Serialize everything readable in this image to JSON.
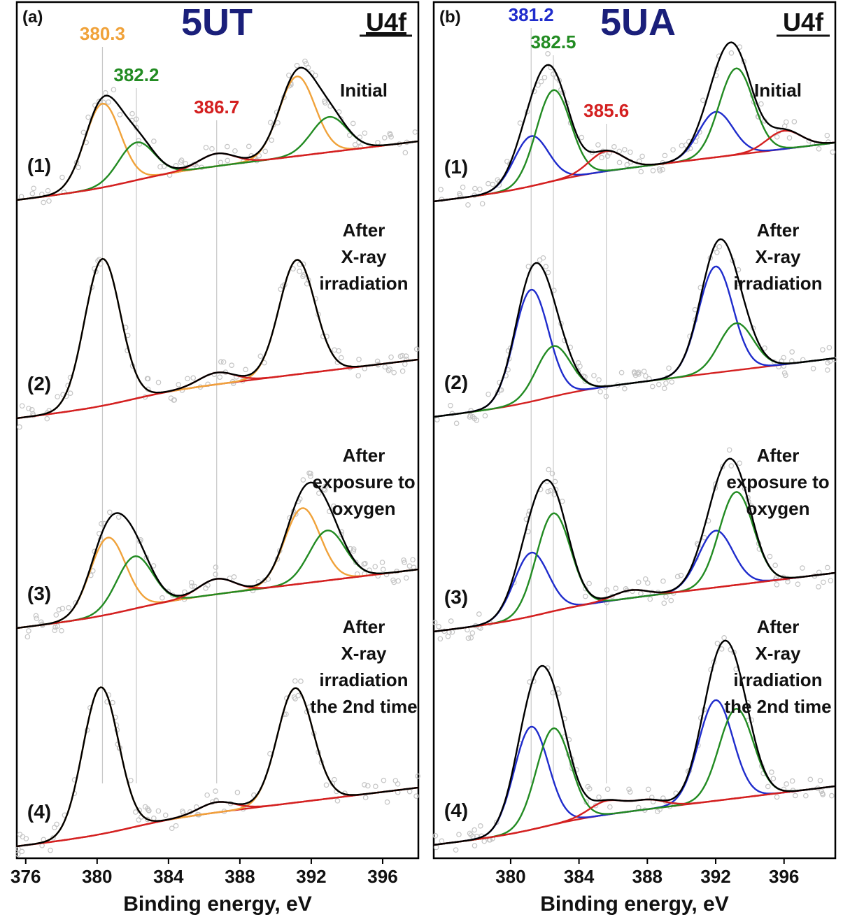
{
  "chart_data": [
    {
      "type": "line",
      "panel_label": "(a)",
      "title": "5UT",
      "core_level": "U4f",
      "xlabel": "Binding energy, eV",
      "xlim": [
        375.5,
        398
      ],
      "x_ticks": [
        "376",
        "380",
        "384",
        "388",
        "392",
        "396"
      ],
      "peak_labels": [
        {
          "text": "380.3",
          "x": 380.3,
          "color": "#f0a23a"
        },
        {
          "text": "382.2",
          "x": 382.2,
          "color": "#228b22"
        },
        {
          "text": "386.7",
          "x": 386.7,
          "color": "#d42020"
        }
      ],
      "colors": {
        "envelope": "#000000",
        "U4+": "#f0a23a",
        "U5+": "#228b22",
        "U6+": "#d42020",
        "background": "#d42020"
      },
      "spectra": [
        {
          "label": "(1)",
          "condition": "Initial",
          "components": [
            {
              "color": "#f0a23a",
              "peaks": [
                [
                  380.3,
                  1.0
                ],
                [
                  391.2,
                  0.95
                ]
              ]
            },
            {
              "color": "#228b22",
              "peaks": [
                [
                  382.2,
                  0.45
                ],
                [
                  393.0,
                  0.42
                ]
              ]
            },
            {
              "color": "#d42020",
              "peaks": [
                [
                  386.7,
                  0.15
                ]
              ]
            }
          ]
        },
        {
          "label": "(2)",
          "condition": "After X-ray irradiation",
          "components": [
            {
              "color": "#f0a23a",
              "peaks": [
                [
                  380.3,
                  1.0
                ],
                [
                  391.2,
                  0.78
                ]
              ]
            },
            {
              "color": "#d42020",
              "peaks": [
                [
                  386.7,
                  0.08
                ]
              ]
            }
          ]
        },
        {
          "label": "(3)",
          "condition": "After exposure to oxygen",
          "components": [
            {
              "color": "#f0a23a",
              "peaks": [
                [
                  380.6,
                  1.0
                ],
                [
                  391.5,
                  0.98
                ]
              ]
            },
            {
              "color": "#228b22",
              "peaks": [
                [
                  382.1,
                  0.68
                ],
                [
                  392.9,
                  0.65
                ]
              ]
            },
            {
              "color": "#d42020",
              "peaks": [
                [
                  386.7,
                  0.2
                ]
              ]
            }
          ]
        },
        {
          "label": "(4)",
          "condition": "After X-ray irradiation the 2nd time",
          "components": [
            {
              "color": "#f0a23a",
              "peaks": [
                [
                  380.2,
                  1.0
                ],
                [
                  391.1,
                  0.78
                ]
              ]
            },
            {
              "color": "#d42020",
              "peaks": [
                [
                  386.7,
                  0.07
                ]
              ]
            }
          ]
        }
      ]
    },
    {
      "type": "line",
      "panel_label": "(b)",
      "title": "5UA",
      "core_level": "U4f",
      "xlabel": "Binding energy, eV",
      "xlim": [
        375.5,
        399
      ],
      "x_ticks": [
        "380",
        "384",
        "388",
        "392",
        "396"
      ],
      "peak_labels": [
        {
          "text": "381.2",
          "x": 381.2,
          "color": "#1f2ccc"
        },
        {
          "text": "382.5",
          "x": 382.5,
          "color": "#228b22"
        },
        {
          "text": "385.6",
          "x": 385.6,
          "color": "#d42020"
        }
      ],
      "colors": {
        "envelope": "#000000",
        "U4+": "#1f2ccc",
        "U5+": "#228b22",
        "U6+": "#d42020",
        "background": "#d42020"
      },
      "spectra": [
        {
          "label": "(1)",
          "condition": "Initial",
          "components": [
            {
              "color": "#1f2ccc",
              "peaks": [
                [
                  381.2,
                  0.55
                ],
                [
                  392.0,
                  0.5
                ]
              ]
            },
            {
              "color": "#228b22",
              "peaks": [
                [
                  382.5,
                  1.0
                ],
                [
                  393.2,
                  0.95
                ]
              ]
            },
            {
              "color": "#d42020",
              "peaks": [
                [
                  385.6,
                  0.22
                ],
                [
                  396.0,
                  0.2
                ]
              ]
            }
          ]
        },
        {
          "label": "(2)",
          "condition": "After X-ray irradiation",
          "components": [
            {
              "color": "#1f2ccc",
              "peaks": [
                [
                  381.2,
                  1.0
                ],
                [
                  392.0,
                  0.95
                ]
              ]
            },
            {
              "color": "#228b22",
              "peaks": [
                [
                  382.5,
                  0.45
                ],
                [
                  393.2,
                  0.42
                ]
              ]
            }
          ]
        },
        {
          "label": "(3)",
          "condition": "After exposure to oxygen",
          "components": [
            {
              "color": "#1f2ccc",
              "peaks": [
                [
                  381.2,
                  0.65
                ],
                [
                  392.0,
                  0.58
                ]
              ]
            },
            {
              "color": "#228b22",
              "peaks": [
                [
                  382.5,
                  1.0
                ],
                [
                  393.2,
                  0.95
                ]
              ]
            },
            {
              "color": "#d42020",
              "peaks": [
                [
                  387.0,
                  0.08
                ]
              ]
            }
          ]
        },
        {
          "label": "(4)",
          "condition": "After X-ray irradiation the 2nd time",
          "components": [
            {
              "color": "#1f2ccc",
              "peaks": [
                [
                  381.2,
                  0.92
                ],
                [
                  392.0,
                  0.9
                ]
              ]
            },
            {
              "color": "#228b22",
              "peaks": [
                [
                  382.5,
                  0.86
                ],
                [
                  393.2,
                  0.8
                ]
              ]
            },
            {
              "color": "#d42020",
              "peaks": [
                [
                  385.6,
                  0.12
                ],
                [
                  388.0,
                  0.08
                ]
              ]
            }
          ]
        }
      ]
    }
  ]
}
